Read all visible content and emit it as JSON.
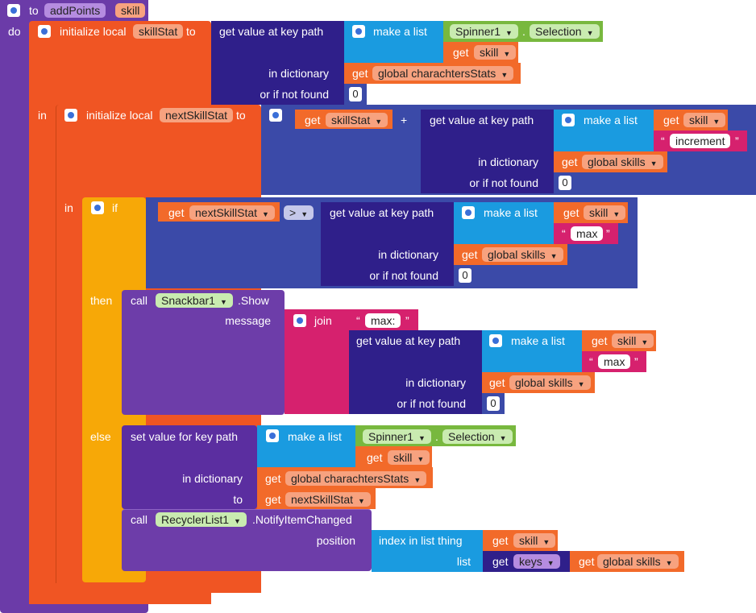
{
  "procedure": {
    "to_label": "to",
    "name": "addPoints",
    "param": "skill",
    "do_label": "do"
  },
  "local1": {
    "init_label": "initialize local",
    "var_name": "skillStat",
    "to_label": "to",
    "get_key_path": "get value at key path",
    "make_list": "make a list",
    "component": "Spinner1",
    "dot": ".",
    "property": "Selection",
    "get_label": "get",
    "get_var": "skill",
    "in_dictionary": "in dictionary",
    "dict_var": "global charachtersStats",
    "or_not_found": "or if not found",
    "default": "0"
  },
  "local2": {
    "in_label": "in",
    "init_label": "initialize local",
    "var_name": "nextSkillStat",
    "to_label": "to",
    "get_label": "get",
    "left_var": "skillStat",
    "plus": "+",
    "get_key_path": "get value at key path",
    "make_list": "make a list",
    "list_var": "skill",
    "list_text": "increment",
    "in_dictionary": "in dictionary",
    "dict_var": "global skills",
    "or_not_found": "or if not found",
    "default": "0"
  },
  "if_block": {
    "in_label": "in",
    "if_label": "if",
    "get_label": "get",
    "left_var": "nextSkillStat",
    "op": ">",
    "get_key_path": "get value at key path",
    "make_list": "make a list",
    "list_var": "skill",
    "list_text": "max",
    "in_dictionary": "in dictionary",
    "dict_var": "global skills",
    "or_not_found": "or if not found",
    "default": "0"
  },
  "then_block": {
    "then_label": "then",
    "call_label": "call",
    "component": "Snackbar1",
    "method": ".Show",
    "message_label": "message",
    "join_label": "join",
    "text1": "max:",
    "get_key_path": "get value at key path",
    "make_list": "make a list",
    "get_label": "get",
    "list_var": "skill",
    "list_text": "max",
    "in_dictionary": "in dictionary",
    "dict_var": "global skills",
    "or_not_found": "or if not found",
    "default": "0"
  },
  "else_block": {
    "else_label": "else",
    "set_key_path": "set value for key path",
    "make_list": "make a list",
    "component": "Spinner1",
    "dot": ".",
    "property": "Selection",
    "get_label": "get",
    "list_var": "skill",
    "in_dictionary": "in dictionary",
    "dict_var": "global charachtersStats",
    "to_label": "to",
    "to_var": "nextSkillStat",
    "call_label": "call",
    "call_component": "RecyclerList1",
    "call_method": ".NotifyItemChanged",
    "position_label": "position",
    "index_label": "index in list  thing",
    "thing_var": "skill",
    "list_label": "list",
    "keys_label": "keys",
    "keys_dict": "global skills"
  },
  "colors": {
    "procedure": "#6b3ba8",
    "local": "#f05523",
    "control": "#f7a807",
    "dictionary": "#2f1f8a",
    "list": "#1a9be0",
    "component": "#78b83e",
    "text": "#d6216e"
  }
}
